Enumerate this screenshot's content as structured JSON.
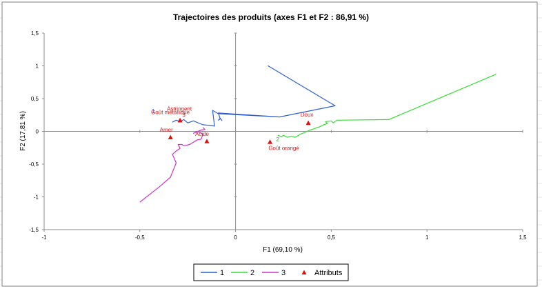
{
  "chart_data": {
    "type": "line",
    "title": "Trajectoires des produits (axes F1 et F2 : 86,91 %)",
    "xlabel": "F1 (69,10 %)",
    "ylabel": "F2 (17,81 %)",
    "xlim": [
      -1,
      1.5
    ],
    "ylim": [
      -1.5,
      1.5
    ],
    "x_ticks": [
      "-1",
      "-0,5",
      "0",
      "0,5",
      "1",
      "1,5"
    ],
    "y_ticks": [
      "1,5",
      "1",
      "0,5",
      "0",
      "-0,5",
      "-1",
      "-1,5"
    ],
    "grid": false,
    "legend_position": "bottom",
    "series": [
      {
        "name": "1",
        "color": "#2f5fd0",
        "points": [
          [
            -0.33,
            0.14
          ],
          [
            -0.31,
            0.17
          ],
          [
            -0.29,
            0.15
          ],
          [
            -0.27,
            0.18
          ],
          [
            -0.25,
            0.13
          ],
          [
            -0.22,
            0.16
          ],
          [
            -0.17,
            0.1
          ],
          [
            -0.13,
            0.09
          ],
          [
            -0.11,
            0.08
          ],
          [
            -0.12,
            0.32
          ],
          [
            -0.09,
            0.27
          ],
          [
            0.23,
            0.22
          ],
          [
            0.52,
            0.39
          ],
          [
            0.17,
            1.0
          ],
          [
            0.52,
            0.39
          ],
          [
            0.23,
            0.22
          ],
          [
            -0.09,
            0.28
          ],
          [
            -0.08,
            0.19
          ],
          [
            -0.09,
            0.17
          ],
          [
            -0.08,
            0.2
          ],
          [
            -0.07,
            0.16
          ]
        ]
      },
      {
        "name": "2",
        "color": "#33dd33",
        "points": [
          [
            0.22,
            -0.06
          ],
          [
            0.24,
            -0.08
          ],
          [
            0.25,
            -0.06
          ],
          [
            0.27,
            -0.09
          ],
          [
            0.29,
            -0.07
          ],
          [
            0.31,
            -0.09
          ],
          [
            0.33,
            -0.06
          ],
          [
            0.34,
            -0.04
          ],
          [
            0.36,
            -0.02
          ],
          [
            0.38,
            0.01
          ],
          [
            0.4,
            0.03
          ],
          [
            0.42,
            0.05
          ],
          [
            0.44,
            0.07
          ],
          [
            0.46,
            0.1
          ],
          [
            0.48,
            0.12
          ],
          [
            0.47,
            0.15
          ],
          [
            0.5,
            0.16
          ],
          [
            0.51,
            0.13
          ],
          [
            0.53,
            0.17
          ],
          [
            0.8,
            0.18
          ],
          [
            1.36,
            0.87
          ]
        ]
      },
      {
        "name": "3",
        "color": "#cc33cc",
        "points": [
          [
            -0.5,
            -1.08
          ],
          [
            -0.4,
            -0.85
          ],
          [
            -0.34,
            -0.7
          ],
          [
            -0.31,
            -0.48
          ],
          [
            -0.33,
            -0.35
          ],
          [
            -0.31,
            -0.3
          ],
          [
            -0.29,
            -0.26
          ],
          [
            -0.3,
            -0.2
          ],
          [
            -0.28,
            -0.2
          ],
          [
            -0.27,
            -0.22
          ],
          [
            -0.24,
            -0.2
          ],
          [
            -0.2,
            -0.13
          ],
          [
            -0.18,
            -0.12
          ],
          [
            -0.17,
            -0.04
          ],
          [
            -0.2,
            0.0
          ],
          [
            -0.22,
            -0.03
          ],
          [
            -0.18,
            0.02
          ],
          [
            -0.16,
            0.03
          ],
          [
            -0.17,
            0.06
          ]
        ]
      }
    ],
    "series_labels": [
      {
        "text": "1",
        "color": "#2f5fd0",
        "x": -0.43,
        "y": 0.28
      },
      {
        "text": "2",
        "color": "#22aa22",
        "x": 0.22,
        "y": -0.15
      },
      {
        "text": "3",
        "color": "#d21a1a",
        "x": -0.27,
        "y": 0.22
      }
    ],
    "attributes_name": "Attributs",
    "attributes_color": "#e01010",
    "attributes": [
      {
        "label": "Astringent",
        "x": -0.29,
        "y": 0.17
      },
      {
        "label": "Goût métallique",
        "x": -0.29,
        "y": 0.17
      },
      {
        "label": "Amer",
        "x": -0.34,
        "y": -0.09
      },
      {
        "label": "Acide",
        "x": -0.15,
        "y": -0.15
      },
      {
        "label": "Doux",
        "x": 0.38,
        "y": 0.13
      },
      {
        "label": "Goût orangé",
        "x": 0.18,
        "y": -0.16
      }
    ]
  }
}
